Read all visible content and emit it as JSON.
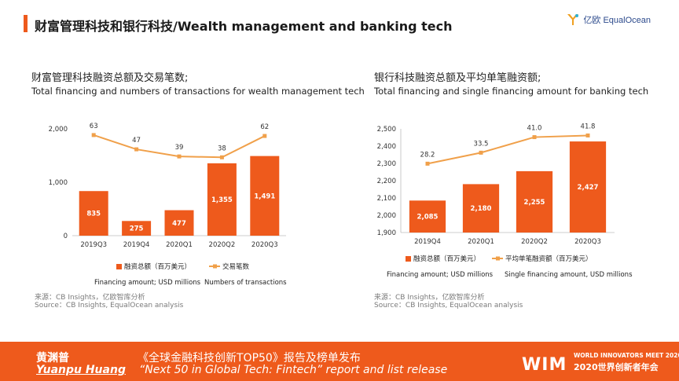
{
  "header": {
    "title": "财富管理科技和银行科技/Wealth management and banking tech",
    "logo_text": "亿欧 EqualOcean"
  },
  "left": {
    "title_cn": "财富管理科技融资总额及交易笔数;",
    "title_en": "Total financing and numbers of transactions for wealth management tech",
    "legend_bar": "融资总额（百万美元）",
    "legend_line": "交易笔数",
    "legend_bar_en": "Financing amount; USD millions",
    "legend_line_en": "Numbers of transactions",
    "source_cn": "来源：CB Insights，亿欧智库分析",
    "source_en": "Source：CB Insights, EqualOcean analysis"
  },
  "right": {
    "title_cn": "银行科技融资总额及平均单笔融资额;",
    "title_en": "Total financing and single financing amount for banking tech",
    "legend_bar": "融资总额（百万美元）",
    "legend_line": "平均单笔融资额（百万美元）",
    "legend_bar_en": "Financing amount; USD millions",
    "legend_line_en": "Single financing amount, USD millions",
    "source_cn": "来源：CB Insights，亿欧智库分析",
    "source_en": "Source：CB Insights, EqualOcean analysis"
  },
  "footer": {
    "name_cn": "黄渊普",
    "name_en": "Yuanpu Huang",
    "event_cn": "《全球金融科技创新TOP50》报告及榜单发布",
    "event_en": "“Next 50 in Global Tech: Fintech”   report and list release",
    "wim_logo": "WIM",
    "wim_top": "WORLD INNOVATORS MEET 2020",
    "wim_bottom": "2020世界创新者年会"
  },
  "colors": {
    "accent": "#ee5a1c",
    "bar": "#ee5a1c",
    "line": "#f0a04a"
  },
  "chart_data": [
    {
      "type": "bar",
      "categories": [
        "2019Q3",
        "2019Q4",
        "2020Q1",
        "2020Q2",
        "2020Q3"
      ],
      "ylim": [
        0,
        2000
      ],
      "yticks": [
        0,
        1000,
        2000
      ],
      "ytick_labels": [
        "0",
        "1,000",
        "2,000"
      ],
      "series": [
        {
          "name": "融资总额（百万美元）",
          "type": "bar",
          "values": [
            835,
            275,
            477,
            1355,
            1491
          ],
          "labels": [
            "835",
            "275",
            "477",
            "1,355",
            "1,491"
          ]
        },
        {
          "name": "交易笔数",
          "type": "line",
          "values": [
            63,
            47,
            39,
            38,
            62
          ],
          "labels": [
            "63",
            "47",
            "39",
            "38",
            "62"
          ],
          "ylim": [
            -50,
            70
          ]
        }
      ]
    },
    {
      "type": "bar",
      "categories": [
        "2019Q4",
        "2020Q1",
        "2020Q2",
        "2020Q3"
      ],
      "ylim": [
        1900,
        2500
      ],
      "yticks": [
        1900,
        2000,
        2100,
        2200,
        2300,
        2400,
        2500
      ],
      "ytick_labels": [
        "1,900",
        "2,000",
        "2,100",
        "2,200",
        "2,300",
        "2,400",
        "2,500"
      ],
      "series": [
        {
          "name": "融资总额（百万美元）",
          "type": "bar",
          "values": [
            2085,
            2180,
            2255,
            2427
          ],
          "labels": [
            "2,085",
            "2,180",
            "2,255",
            "2,427"
          ]
        },
        {
          "name": "平均单笔融资额（百万美元）",
          "type": "line",
          "values": [
            28.2,
            33.5,
            41.0,
            41.8
          ],
          "labels": [
            "28.2",
            "33.5",
            "41.0",
            "41.8"
          ],
          "ylim": [
            -5,
            45
          ]
        }
      ]
    }
  ]
}
